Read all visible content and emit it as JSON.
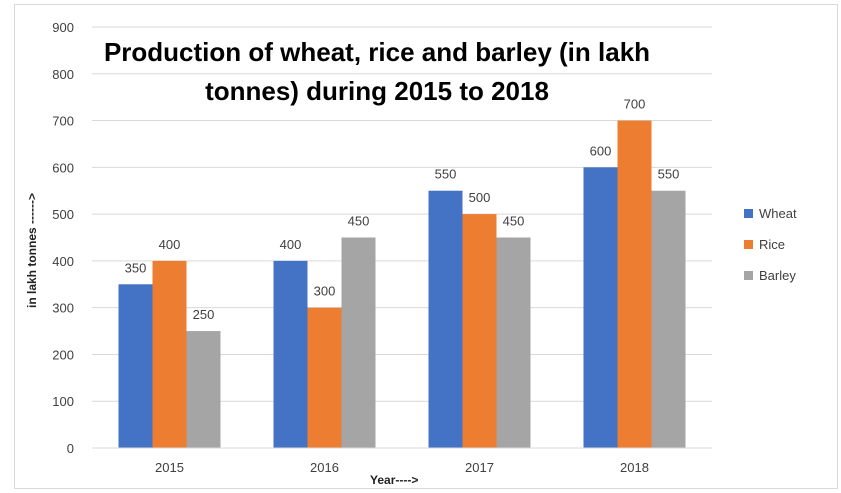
{
  "chart_data": {
    "type": "bar",
    "title_lines": [
      "Production of wheat, rice and barley (in lakh",
      "tonnes) during 2015 to 2018"
    ],
    "xlabel": "Year---->",
    "ylabel": "in lakh tonnes ------>",
    "categories": [
      "2015",
      "2016",
      "2017",
      "2018"
    ],
    "series": [
      {
        "name": "Wheat",
        "color": "#4472c4",
        "values": [
          350,
          400,
          550,
          600
        ]
      },
      {
        "name": "Rice",
        "color": "#ed7d31",
        "values": [
          400,
          300,
          500,
          700
        ]
      },
      {
        "name": "Barley",
        "color": "#a5a5a5",
        "values": [
          250,
          450,
          450,
          550
        ]
      }
    ],
    "ylim": [
      0,
      900
    ],
    "yticks": [
      "0",
      "100",
      "200",
      "300",
      "400",
      "500",
      "600",
      "700",
      "800",
      "900"
    ],
    "grid": true,
    "legend_position": "right",
    "data_labels": true
  }
}
